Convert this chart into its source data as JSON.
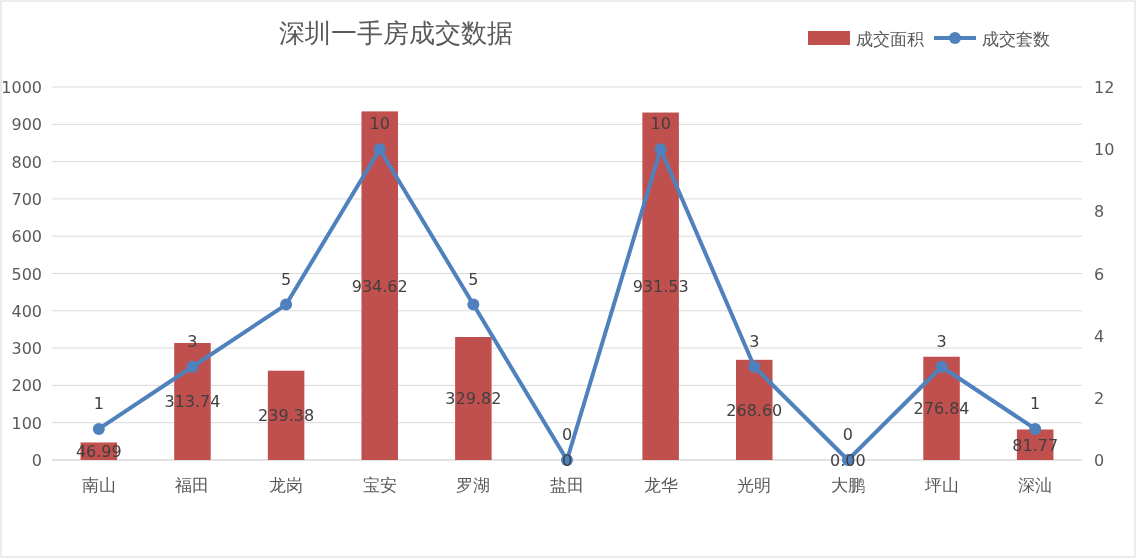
{
  "chart_data": {
    "type": "bar",
    "title": "深圳一手房成交数据",
    "categories": [
      "南山",
      "福田",
      "龙岗",
      "宝安",
      "罗湖",
      "盐田",
      "龙华",
      "光明",
      "大鹏",
      "坪山",
      "深汕"
    ],
    "series": [
      {
        "name": "成交面积",
        "color": "#c0504d",
        "values": [
          46.99,
          313.74,
          239.38,
          934.62,
          329.82,
          0,
          931.53,
          268.6,
          0,
          276.84,
          81.77
        ],
        "value_labels": [
          "46.99",
          "313.74",
          "239.38",
          "934.62",
          "329.82",
          "0",
          "931.53",
          "268.60",
          "0.00",
          "276.84",
          "81.77"
        ]
      },
      {
        "name": "成交套数",
        "type": "line",
        "axis": "y2",
        "color": "#4f81bd",
        "values": [
          1,
          3,
          5,
          10,
          5,
          0,
          10,
          3,
          0,
          3,
          1
        ],
        "value_labels": [
          "1",
          "3",
          "5",
          "10",
          "5",
          "0",
          "10",
          "3",
          "0",
          "3",
          "1"
        ]
      }
    ],
    "ylim": [
      0,
      1000
    ],
    "yticks": [
      0,
      100,
      200,
      300,
      400,
      500,
      600,
      700,
      800,
      900,
      1000
    ],
    "y2lim": [
      0,
      12
    ],
    "y2ticks": [
      0,
      2,
      4,
      6,
      8,
      10,
      12
    ],
    "grid": "y",
    "legend": "top right",
    "marker": "circle"
  }
}
